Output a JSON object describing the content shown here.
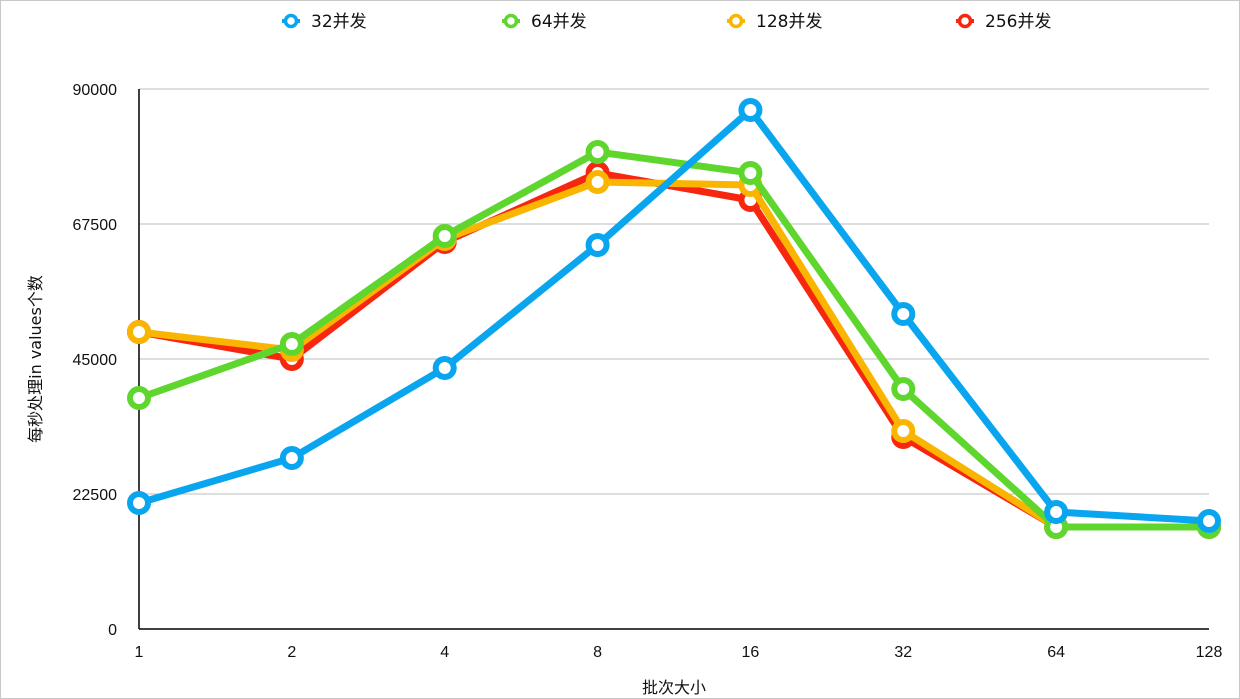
{
  "chart_data": {
    "type": "line",
    "xlabel": "批次大小",
    "ylabel": "每秒处理in values个数",
    "categories": [
      "1",
      "2",
      "4",
      "8",
      "16",
      "32",
      "64",
      "128"
    ],
    "ylim": [
      0,
      90000
    ],
    "yticks": [
      "0",
      "22500",
      "45000",
      "67500",
      "90000"
    ],
    "ytick_values": [
      0,
      22500,
      45000,
      67500,
      90000
    ],
    "grid": "horizontal",
    "legend_position": "top",
    "series": [
      {
        "name": "32并发",
        "color": "#0aa5ef",
        "values": [
          21000,
          28500,
          43500,
          64000,
          86500,
          52500,
          19500,
          18000
        ]
      },
      {
        "name": "64并发",
        "color": "#5fd62e",
        "values": [
          38500,
          47500,
          65500,
          79500,
          76000,
          40000,
          17000,
          17000
        ]
      },
      {
        "name": "128并发",
        "color": "#f9b500",
        "values": [
          49500,
          46500,
          65000,
          74500,
          74000,
          33000,
          17000,
          17000
        ]
      },
      {
        "name": "256并发",
        "color": "#f7260f",
        "values": [
          49500,
          45000,
          64500,
          76000,
          71500,
          32000,
          17000,
          17000
        ]
      }
    ]
  }
}
